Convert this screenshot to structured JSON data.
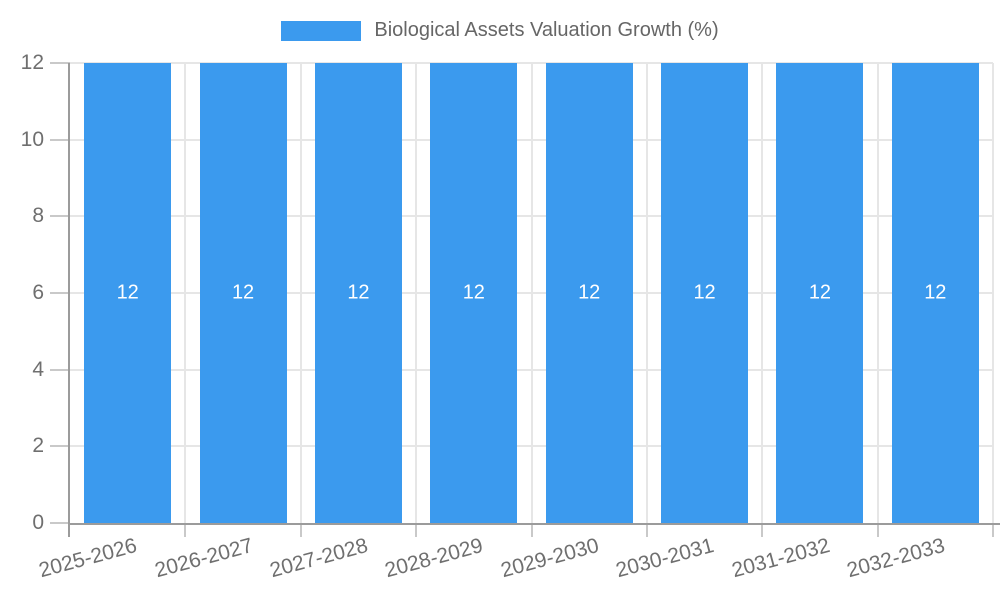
{
  "chart_data": {
    "type": "bar",
    "title": "Biological Assets Valuation Growth (%)",
    "categories": [
      "2025-2026",
      "2026-2027",
      "2027-2028",
      "2028-2029",
      "2029-2030",
      "2030-2031",
      "2031-2032",
      "2032-2033"
    ],
    "values": [
      12,
      12,
      12,
      12,
      12,
      12,
      12,
      12
    ],
    "value_labels": [
      "12",
      "12",
      "12",
      "12",
      "12",
      "12",
      "12",
      "12"
    ],
    "xlabel": "",
    "ylabel": "",
    "ylim": [
      0,
      12
    ],
    "yticks": [
      0,
      2,
      4,
      6,
      8,
      10,
      12
    ],
    "grid": true,
    "legend_position": "top",
    "x_label_rotation_deg": -15
  },
  "colors": {
    "background": "#ffffff",
    "bar": "#3b9aee",
    "axis_line": "#9b9b9b",
    "gridline": "#e6e6e6",
    "tick": "#c9c9c9",
    "tick_label": "#6f6f6f",
    "legend_text": "#666666",
    "value_label": "#ffffff"
  }
}
